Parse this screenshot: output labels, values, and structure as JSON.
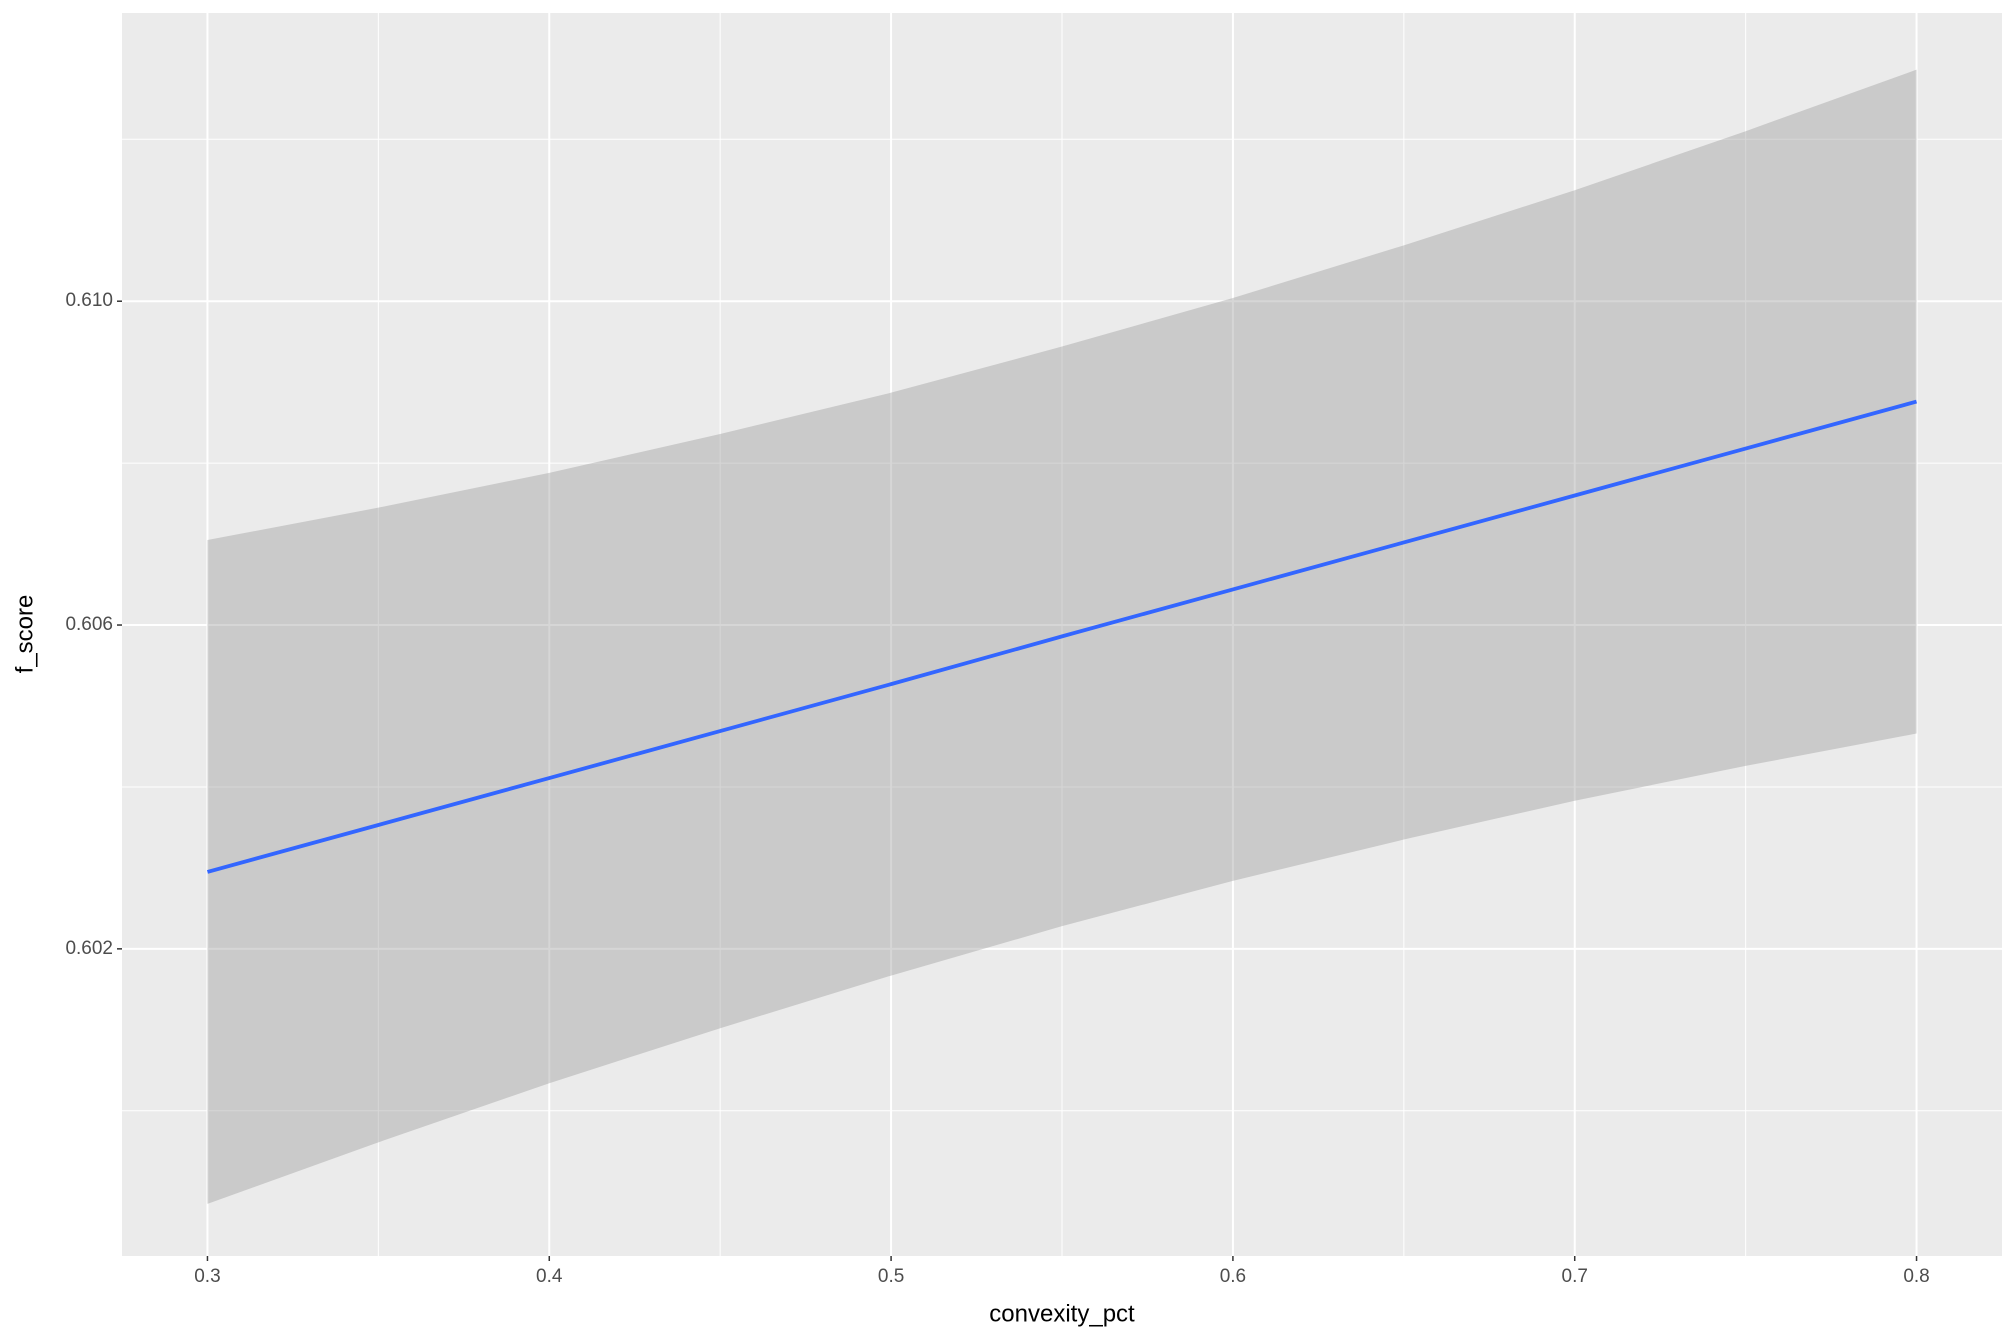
{
  "chart_data": {
    "type": "line",
    "x_label": "convexity_pct",
    "y_label": "f_score",
    "x": [
      0.3,
      0.35,
      0.4,
      0.45,
      0.5,
      0.55,
      0.6,
      0.65,
      0.7,
      0.75,
      0.8
    ],
    "values": [
      0.60295,
      0.60353,
      0.60411,
      0.60469,
      0.60527,
      0.60586,
      0.60644,
      0.60702,
      0.6076,
      0.60818,
      0.60876
    ],
    "ci_upper": [
      0.60705,
      0.60745,
      0.60788,
      0.60836,
      0.60887,
      0.60944,
      0.61004,
      0.61069,
      0.61137,
      0.6121,
      0.61286
    ],
    "ci_lower": [
      0.59885,
      0.59961,
      0.60034,
      0.60102,
      0.60167,
      0.60228,
      0.60284,
      0.60335,
      0.60383,
      0.60426,
      0.60466
    ],
    "color": "#3366ff",
    "band_color": "#999999",
    "xlim": [
      0.275,
      0.825
    ],
    "ylim": [
      0.598206,
      0.61356
    ],
    "xticks": [
      0.3,
      0.4,
      0.5,
      0.6,
      0.7,
      0.8
    ],
    "yticks": [
      0.602,
      0.606,
      {
        "value": 0.61,
        "label": "0.610"
      }
    ],
    "grid": true
  }
}
